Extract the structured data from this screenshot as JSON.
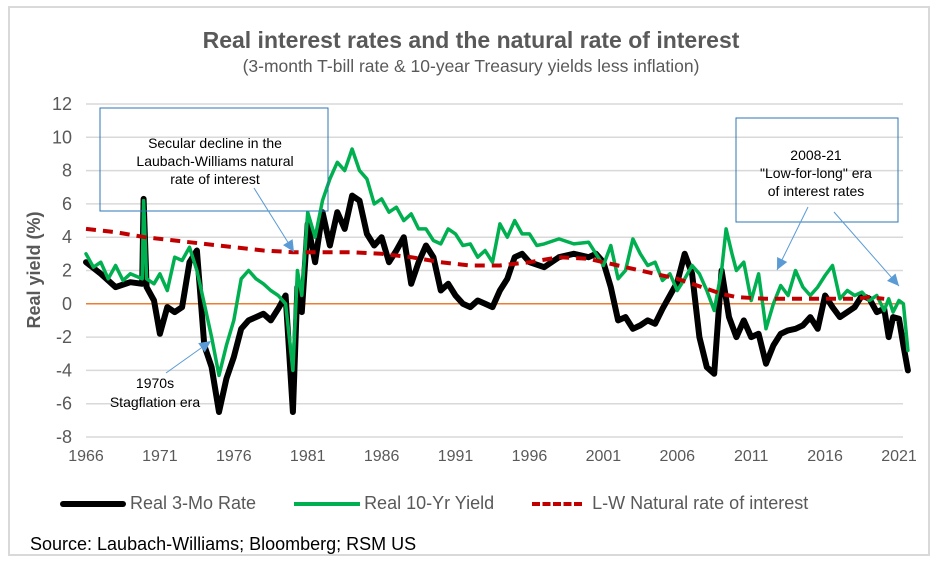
{
  "chart_data": {
    "type": "line",
    "title": "Real interest rates and the natural rate of interest",
    "subtitle": "(3-month T-bill rate & 10-year Treasury yields less inflation)",
    "xlabel": "",
    "ylabel": "Real yield (%)",
    "xlim": [
      1966,
      2021.6
    ],
    "ylim": [
      -8,
      12
    ],
    "yticks": [
      -8,
      -6,
      -4,
      -2,
      0,
      2,
      4,
      6,
      8,
      10,
      12
    ],
    "xticks": [
      "1966",
      "1971",
      "1976",
      "1981",
      "1986",
      "1991",
      "1996",
      "2001",
      "2006",
      "2011",
      "2016",
      "2021"
    ],
    "grid": true,
    "legend_position": "bottom",
    "zero_line_color": "#ed7d31",
    "series": [
      {
        "name": "Real 3-Mo Rate",
        "color": "#000000",
        "style": "solid",
        "x": [
          1966,
          1967,
          1968,
          1969,
          1969.8,
          1969.9,
          1970.1,
          1970.6,
          1971,
          1971.5,
          1972,
          1972.5,
          1973,
          1973.5,
          1974,
          1974.5,
          1975,
          1975.5,
          1976,
          1976.5,
          1977,
          1977.5,
          1978,
          1978.5,
          1979,
          1979.5,
          1980,
          1980.3,
          1980.6,
          1981,
          1981.5,
          1982,
          1982.5,
          1983,
          1983.5,
          1984,
          1984.5,
          1985,
          1985.5,
          1986,
          1986.5,
          1987,
          1987.5,
          1988,
          1988.5,
          1989,
          1989.5,
          1990,
          1990.5,
          1991,
          1991.5,
          1992,
          1992.5,
          1993,
          1993.5,
          1994,
          1994.5,
          1995,
          1995.5,
          1996,
          1997,
          1998,
          1999,
          2000,
          2000.5,
          2001,
          2001.5,
          2002,
          2002.5,
          2003,
          2003.5,
          2004,
          2004.5,
          2005,
          2005.5,
          2006,
          2006.5,
          2007,
          2007.5,
          2008,
          2008.5,
          2009,
          2009.5,
          2010,
          2010.5,
          2011,
          2011.5,
          2012,
          2012.5,
          2013,
          2013.5,
          2014,
          2014.5,
          2015,
          2015.5,
          2016,
          2016.5,
          2017,
          2017.5,
          2018,
          2018.5,
          2019,
          2019.5,
          2020,
          2020.3,
          2020.6,
          2021,
          2021.3,
          2021.6
        ],
        "values": [
          2.5,
          1.8,
          1.0,
          1.3,
          1.2,
          6.3,
          1.0,
          0.2,
          -1.8,
          -0.2,
          -0.5,
          -0.2,
          2.5,
          3.2,
          -2.5,
          -3.8,
          -6.5,
          -4.5,
          -3.2,
          -1.5,
          -1.0,
          -0.8,
          -0.6,
          -1.0,
          -0.3,
          0.5,
          -6.5,
          1.0,
          -0.5,
          4.8,
          2.5,
          5.5,
          3.5,
          5.5,
          4.5,
          6.5,
          6.2,
          4.2,
          3.5,
          4.0,
          2.5,
          3.2,
          4.0,
          1.2,
          2.5,
          3.5,
          2.8,
          0.8,
          1.2,
          0.5,
          0.0,
          -0.2,
          0.2,
          0.0,
          -0.2,
          0.8,
          1.5,
          2.8,
          3.0,
          2.5,
          2.2,
          2.8,
          3.0,
          2.8,
          3.0,
          2.5,
          1.0,
          -1.0,
          -0.8,
          -1.5,
          -1.3,
          -1.0,
          -1.2,
          -0.3,
          0.5,
          1.3,
          3.0,
          1.8,
          -2.0,
          -3.8,
          -4.2,
          2.0,
          -0.8,
          -2.0,
          -1.0,
          -2.0,
          -1.8,
          -3.6,
          -2.5,
          -1.8,
          -1.6,
          -1.5,
          -1.3,
          -0.8,
          -1.5,
          0.5,
          -0.2,
          -0.8,
          -0.5,
          -0.2,
          0.5,
          0.3,
          -0.5,
          -0.3,
          -2.0,
          -0.8,
          -0.9,
          -2.5,
          -4.0
        ]
      },
      {
        "name": "Real 10-Yr Yield",
        "color": "#00b050",
        "style": "solid",
        "x": [
          1966,
          1966.5,
          1967,
          1967.5,
          1968,
          1968.5,
          1969,
          1969.8,
          1969.9,
          1970.1,
          1970.6,
          1971,
          1971.5,
          1972,
          1972.5,
          1973,
          1973.5,
          1974,
          1974.5,
          1975,
          1975.5,
          1976,
          1976.5,
          1977,
          1977.5,
          1978,
          1978.5,
          1979,
          1979.5,
          1980,
          1980.3,
          1980.6,
          1981,
          1981.5,
          1982,
          1982.5,
          1983,
          1983.5,
          1984,
          1984.5,
          1985,
          1985.5,
          1986,
          1986.5,
          1987,
          1987.5,
          1988,
          1988.5,
          1989,
          1989.5,
          1990,
          1990.5,
          1991,
          1991.5,
          1992,
          1992.5,
          1993,
          1993.5,
          1994,
          1994.5,
          1995,
          1995.5,
          1996,
          1996.5,
          1997,
          1998,
          1999,
          2000,
          2000.5,
          2001,
          2001.5,
          2002,
          2002.5,
          2003,
          2003.5,
          2004,
          2004.5,
          2005,
          2005.5,
          2006,
          2006.5,
          2007,
          2007.5,
          2008,
          2008.5,
          2009,
          2009.3,
          2009.7,
          2010,
          2010.5,
          2011,
          2011.5,
          2012,
          2012.5,
          2013,
          2013.5,
          2014,
          2014.5,
          2015,
          2015.5,
          2016,
          2016.5,
          2017,
          2017.5,
          2018,
          2018.5,
          2019,
          2019.5,
          2020,
          2020.3,
          2020.6,
          2021,
          2021.3,
          2021.6
        ],
        "values": [
          3.0,
          2.2,
          2.5,
          1.5,
          2.3,
          1.4,
          1.8,
          1.5,
          6.2,
          1.5,
          1.2,
          1.8,
          0.8,
          2.8,
          2.6,
          3.4,
          2.0,
          0.0,
          -2.0,
          -4.3,
          -2.5,
          -1.0,
          1.5,
          2.0,
          1.5,
          1.2,
          0.8,
          0.5,
          0.0,
          -4.0,
          2.0,
          0.5,
          5.5,
          4.0,
          6.2,
          7.5,
          8.5,
          8.0,
          9.3,
          8.0,
          7.5,
          6.0,
          6.3,
          5.5,
          5.8,
          5.0,
          5.4,
          4.5,
          4.5,
          3.8,
          3.6,
          4.5,
          4.2,
          3.5,
          3.6,
          2.8,
          3.2,
          2.5,
          4.8,
          4.0,
          5.0,
          4.2,
          4.2,
          3.5,
          3.6,
          3.9,
          3.6,
          3.7,
          3.0,
          2.3,
          3.5,
          1.5,
          2.0,
          3.9,
          3.0,
          2.3,
          2.5,
          1.4,
          1.8,
          0.8,
          1.5,
          2.3,
          1.8,
          0.8,
          -0.4,
          2.0,
          4.5,
          3.0,
          2.0,
          2.5,
          0.2,
          1.8,
          -1.5,
          0.0,
          1.1,
          0.5,
          2.0,
          1.0,
          0.5,
          1.0,
          1.7,
          2.3,
          0.3,
          0.8,
          0.5,
          0.7,
          0.2,
          0.5,
          -0.4,
          0.3,
          -0.5,
          0.2,
          0.0,
          -2.8
        ]
      },
      {
        "name": "L-W Natural rate of interest",
        "color": "#c00000",
        "style": "dashed",
        "x": [
          1966,
          1968,
          1970,
          1972,
          1974,
          1976,
          1978,
          1980,
          1982,
          1984,
          1986,
          1988,
          1990,
          1992,
          1994,
          1996,
          1998,
          2000,
          2002,
          2004,
          2006,
          2008,
          2009,
          2010,
          2012,
          2014,
          2016,
          2018,
          2019,
          2020
        ],
        "values": [
          4.5,
          4.3,
          4.0,
          3.8,
          3.6,
          3.4,
          3.2,
          3.1,
          3.1,
          3.1,
          3.0,
          2.8,
          2.5,
          2.3,
          2.3,
          2.5,
          2.8,
          2.7,
          2.3,
          1.9,
          1.5,
          0.9,
          0.6,
          0.4,
          0.3,
          0.3,
          0.3,
          0.3,
          0.4,
          0.3
        ]
      }
    ],
    "annotations": [
      {
        "text": [
          "Secular decline in the",
          "Laubach-Williams natural",
          "rate of interest"
        ],
        "points_to_year": 1981,
        "points_to_value": 3.3
      },
      {
        "text": [
          "1970s",
          "Stagflation era"
        ],
        "points_to_year": 1975,
        "points_to_value": -2.5
      },
      {
        "text": [
          "2008-21",
          "\"Low-for-long\" era",
          "of interest rates"
        ],
        "points_to_year": [
          2012,
          2021
        ]
      }
    ]
  },
  "legend": [
    {
      "label": "Real 3-Mo Rate"
    },
    {
      "label": "Real 10-Yr Yield"
    },
    {
      "label": "L-W Natural rate of interest"
    }
  ],
  "source": "Source: Laubach-Williams; Bloomberg; RSM US",
  "colors": {
    "black_series": "#000000",
    "green_series": "#00b050",
    "red_series": "#c00000",
    "zero_line": "#ed7d31",
    "annotation_border": "#2e75b6",
    "arrow": "#5b9bd5"
  }
}
